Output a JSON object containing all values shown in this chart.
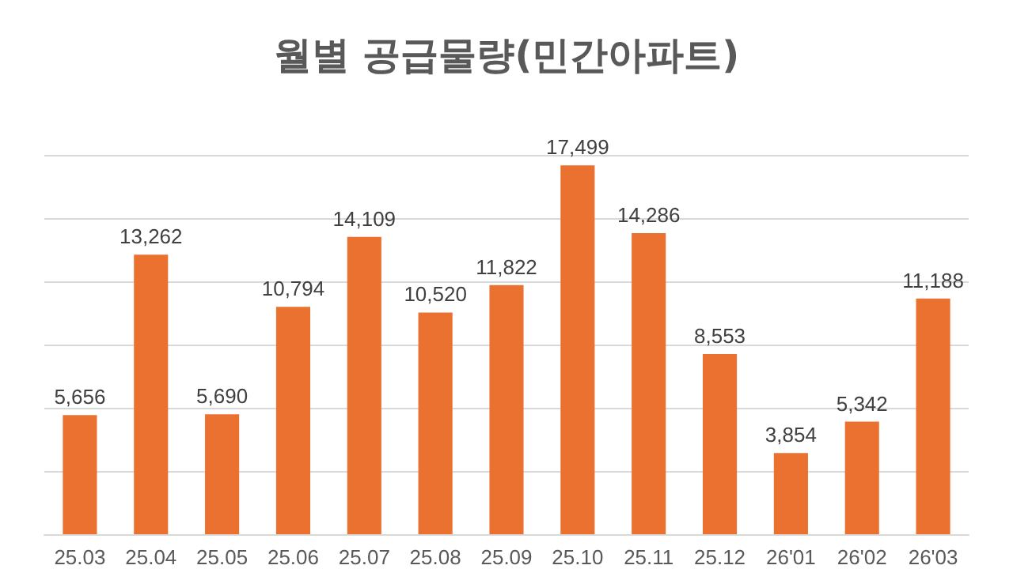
{
  "chart_data": {
    "type": "bar",
    "title": "월별 공급물량(민간아파트)",
    "categories": [
      "25.03",
      "25.04",
      "25.05",
      "25.06",
      "25.07",
      "25.08",
      "25.09",
      "25.10",
      "25.11",
      "25.12",
      "26'01",
      "26'02",
      "26'03"
    ],
    "values": [
      5656,
      13262,
      5690,
      10794,
      14109,
      10520,
      11822,
      17499,
      14286,
      8553,
      3854,
      5342,
      11188
    ],
    "value_labels": [
      "5,656",
      "13,262",
      "5,690",
      "10,794",
      "14,109",
      "10,520",
      "11,822",
      "17,499",
      "14,286",
      "8,553",
      "3,854",
      "5,342",
      "11,188"
    ],
    "color": "#ea7130",
    "tick_labels": "x",
    "grid": "y"
  }
}
